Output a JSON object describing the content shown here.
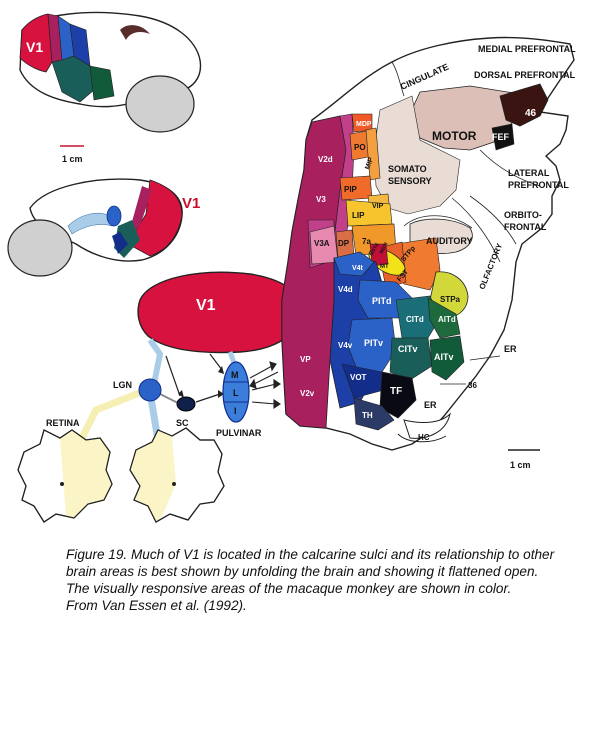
{
  "labels": {
    "v1_top": "V1",
    "v1_mid": "V1",
    "v1_big": "V1",
    "scale_left": "1 cm",
    "scale_right": "1 cm",
    "lgn": "LGN",
    "sc": "SC",
    "retina": "RETINA",
    "pulvinar": "PULVINAR",
    "pulv_m": "M",
    "pulv_l": "L",
    "pulv_i": "I",
    "medial_prefrontal": "MEDIAL PREFRONTAL",
    "dorsal_prefrontal": "DORSAL PREFRONTAL",
    "cingulate": "CINGULATE",
    "motor": "MOTOR",
    "a46": "46",
    "fef": "FEF",
    "lateral": "LATERAL",
    "prefrontal": "PREFRONTAL",
    "orbito": "ORBITO-",
    "frontal": "FRONTAL",
    "olfactory": "OLFACTORY",
    "somato": "SOMATO",
    "sensory": "SENSORY",
    "auditory": "AUDITORY",
    "mdp": "MDP",
    "po": "PO",
    "mip": "MIP",
    "pip": "PIP",
    "vip": "VIP",
    "lip": "LIP",
    "v2d": "V2d",
    "v3": "V3",
    "v3a": "V3A",
    "dp": "DP",
    "a7a": "7a",
    "v4t": "V4t",
    "mt": "MT",
    "mstd": "MSTd",
    "mstl": "MSTl",
    "stpp": "STPp",
    "fst": "FST",
    "stpa": "STPa",
    "v4d": "V4d",
    "pitd": "PITd",
    "citd": "CITd",
    "aitd": "AITd",
    "pitv": "PITv",
    "citv": "CITv",
    "aitv": "AITv",
    "v4v": "V4v",
    "vp": "VP",
    "vot": "VOT",
    "v2v": "V2v",
    "tf": "TF",
    "th": "TH",
    "er1": "ER",
    "er2": "ER",
    "a36": "36",
    "hc": "HC"
  },
  "caption": {
    "line1": "Figure 19. Much of V1 is located in the calcarine sulci and its relationship to other",
    "line2": "brain areas is best shown by unfolding the brain and showing it flattened open.",
    "line3": "The visually responsive areas of the macaque monkey are shown in color.",
    "line4": "From Van Essen et al. (1992)."
  },
  "colors": {
    "v1": "#d8123f",
    "v2": "#a8205e",
    "v3": "#c2408a",
    "v3a": "#e88ab0",
    "v4": "#1c3fa8",
    "v4dark": "#122d8a",
    "pit": "#2b62c8",
    "cit": "#1a5e5a",
    "ait": "#115a3a",
    "mt": "#f2e21a",
    "orange": "#f08a2a",
    "yellow": "#f6c52e",
    "motor": "#dcc0b8",
    "somato": "#e8dcd4",
    "a46": "#3a1410",
    "stpa": "#d2d83a",
    "tf": "#0a0a14",
    "retina_fill": "#fbf4c6",
    "blue_light": "#a9cde9",
    "gray_brain": "#d0d0d0"
  }
}
